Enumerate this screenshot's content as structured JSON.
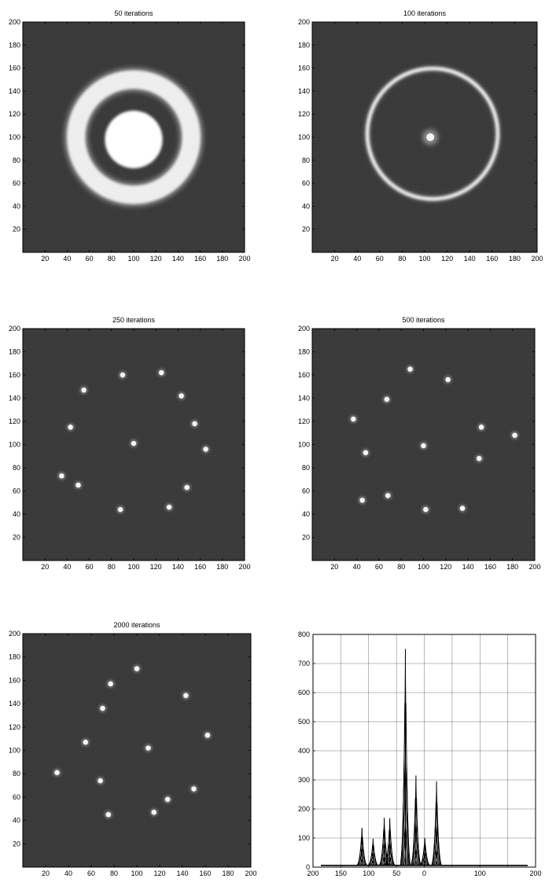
{
  "chart_data": [
    {
      "type": "heatmap",
      "title": "50 iterations",
      "xlim": [
        0,
        200
      ],
      "ylim": [
        0,
        200
      ],
      "xticks": [
        20,
        40,
        60,
        80,
        100,
        120,
        140,
        160,
        180,
        200
      ],
      "yticks": [
        20,
        40,
        60,
        80,
        100,
        120,
        140,
        160,
        180,
        200
      ],
      "colormap": "gray",
      "background": "#3a3a3a",
      "features": [
        {
          "kind": "ring",
          "cx": 100,
          "cy": 100,
          "r": 52,
          "width": 22,
          "intensity": 0.95
        },
        {
          "kind": "disk",
          "cx": 100,
          "cy": 98,
          "r": 26,
          "intensity": 1.0
        }
      ]
    },
    {
      "type": "heatmap",
      "title": "100 iterations",
      "xlim": [
        0,
        200
      ],
      "ylim": [
        0,
        200
      ],
      "xticks": [
        20,
        40,
        60,
        80,
        100,
        120,
        140,
        160,
        180,
        200
      ],
      "yticks": [
        20,
        40,
        60,
        80,
        100,
        120,
        140,
        160,
        180,
        200
      ],
      "colormap": "gray",
      "background": "#3a3a3a",
      "features": [
        {
          "kind": "ring",
          "cx": 107,
          "cy": 103,
          "r": 58,
          "width": 4,
          "intensity": 1.0
        },
        {
          "kind": "spot",
          "cx": 105,
          "cy": 100,
          "r": 7,
          "intensity": 0.9
        }
      ]
    },
    {
      "type": "heatmap",
      "title": "250 iterations",
      "xlim": [
        0,
        200
      ],
      "ylim": [
        0,
        200
      ],
      "xticks": [
        20,
        40,
        60,
        80,
        100,
        120,
        140,
        160,
        180,
        200
      ],
      "yticks": [
        20,
        40,
        60,
        80,
        100,
        120,
        140,
        160,
        180,
        200
      ],
      "colormap": "gray",
      "background": "#3a3a3a",
      "spots": [
        {
          "x": 55,
          "y": 147
        },
        {
          "x": 90,
          "y": 160
        },
        {
          "x": 125,
          "y": 162
        },
        {
          "x": 143,
          "y": 142
        },
        {
          "x": 155,
          "y": 118
        },
        {
          "x": 165,
          "y": 96
        },
        {
          "x": 148,
          "y": 63
        },
        {
          "x": 132,
          "y": 46
        },
        {
          "x": 88,
          "y": 44
        },
        {
          "x": 50,
          "y": 65
        },
        {
          "x": 35,
          "y": 73
        },
        {
          "x": 43,
          "y": 115
        },
        {
          "x": 100,
          "y": 101
        }
      ]
    },
    {
      "type": "heatmap",
      "title": "500 iterations",
      "xlim": [
        0,
        200
      ],
      "ylim": [
        0,
        200
      ],
      "xticks": [
        20,
        40,
        60,
        80,
        100,
        120,
        140,
        160,
        180,
        200
      ],
      "yticks": [
        20,
        40,
        60,
        80,
        100,
        120,
        140,
        160,
        180,
        200
      ],
      "colormap": "gray",
      "background": "#3a3a3a",
      "spots": [
        {
          "x": 88,
          "y": 165
        },
        {
          "x": 122,
          "y": 156
        },
        {
          "x": 67,
          "y": 139
        },
        {
          "x": 37,
          "y": 122
        },
        {
          "x": 152,
          "y": 115
        },
        {
          "x": 182,
          "y": 108
        },
        {
          "x": 100,
          "y": 99
        },
        {
          "x": 48,
          "y": 93
        },
        {
          "x": 150,
          "y": 88
        },
        {
          "x": 45,
          "y": 52
        },
        {
          "x": 68,
          "y": 56
        },
        {
          "x": 102,
          "y": 44
        },
        {
          "x": 135,
          "y": 45
        }
      ]
    },
    {
      "type": "heatmap",
      "title": "2000 iterations",
      "xlim": [
        0,
        200
      ],
      "ylim": [
        0,
        200
      ],
      "xticks": [
        20,
        40,
        60,
        80,
        100,
        120,
        140,
        160,
        180,
        200
      ],
      "yticks": [
        20,
        40,
        60,
        80,
        100,
        120,
        140,
        160,
        180,
        200
      ],
      "colormap": "gray",
      "background": "#3a3a3a",
      "spots": [
        {
          "x": 100,
          "y": 170
        },
        {
          "x": 77,
          "y": 157
        },
        {
          "x": 143,
          "y": 147
        },
        {
          "x": 70,
          "y": 136
        },
        {
          "x": 162,
          "y": 113
        },
        {
          "x": 55,
          "y": 107
        },
        {
          "x": 110,
          "y": 102
        },
        {
          "x": 30,
          "y": 81
        },
        {
          "x": 68,
          "y": 74
        },
        {
          "x": 150,
          "y": 67
        },
        {
          "x": 127,
          "y": 58
        },
        {
          "x": 115,
          "y": 47
        },
        {
          "x": 75,
          "y": 45
        }
      ]
    },
    {
      "type": "line",
      "title": "",
      "xlim": [
        -200,
        200
      ],
      "ylim": [
        0,
        800
      ],
      "xticks": [
        -200,
        -150,
        -100,
        -50,
        0,
        100,
        200
      ],
      "xtick_labels": [
        "200",
        "150",
        "100",
        "50",
        "0",
        "100",
        "200"
      ],
      "yticks": [
        0,
        100,
        200,
        300,
        400,
        500,
        600,
        700,
        800
      ],
      "grid": true,
      "peaks": [
        {
          "x": -112,
          "y": 135
        },
        {
          "x": -92,
          "y": 98
        },
        {
          "x": -72,
          "y": 170
        },
        {
          "x": -62,
          "y": 168
        },
        {
          "x": -34,
          "y": 750
        },
        {
          "x": -15,
          "y": 315
        },
        {
          "x": 1,
          "y": 100
        },
        {
          "x": 22,
          "y": 295
        }
      ],
      "baseline": 6
    }
  ]
}
